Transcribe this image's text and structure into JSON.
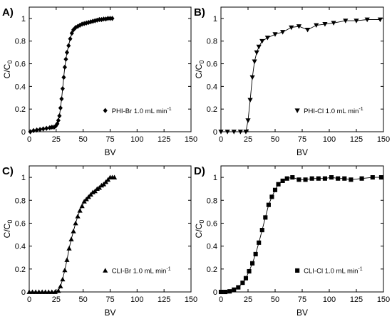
{
  "chart_data": [
    {
      "type": "scatter",
      "panel_label": "A)",
      "xlabel": "BV",
      "ylabel": "C/C",
      "ylabel_sub": "0",
      "xlim": [
        0,
        150
      ],
      "ylim": [
        0,
        1.1
      ],
      "xticks": [
        "0",
        "25",
        "50",
        "75",
        "100",
        "125",
        "150"
      ],
      "yticks": [
        "0",
        "0.2",
        "0.4",
        "0.6",
        "0.8",
        "1"
      ],
      "marker": "diamond",
      "legend": {
        "label": "PHI-Br 1.0 mL min",
        "superscript": "-1",
        "position": "right-middle"
      },
      "x": [
        1,
        4,
        7,
        10,
        13,
        16,
        19,
        21,
        23,
        24.5,
        26,
        27,
        28,
        29,
        30,
        31,
        32,
        33,
        34,
        35,
        36.5,
        38,
        39.5,
        41,
        43,
        45,
        47,
        49,
        51,
        53,
        55,
        57,
        59,
        61,
        63,
        65,
        67,
        69,
        71,
        73,
        75,
        77
      ],
      "y": [
        0,
        0.01,
        0.015,
        0.02,
        0.025,
        0.03,
        0.035,
        0.04,
        0.04,
        0.05,
        0.07,
        0.1,
        0.14,
        0.21,
        0.29,
        0.38,
        0.48,
        0.57,
        0.64,
        0.7,
        0.76,
        0.82,
        0.87,
        0.9,
        0.92,
        0.93,
        0.94,
        0.95,
        0.955,
        0.96,
        0.965,
        0.97,
        0.975,
        0.98,
        0.985,
        0.99,
        0.99,
        0.995,
        0.995,
        1.0,
        1.0,
        1.0
      ]
    },
    {
      "type": "scatter",
      "panel_label": "B)",
      "xlabel": "BV",
      "ylabel": "C/C",
      "ylabel_sub": "0",
      "xlim": [
        0,
        150
      ],
      "ylim": [
        0,
        1.1
      ],
      "xticks": [
        "0",
        "25",
        "50",
        "75",
        "100",
        "125",
        "150"
      ],
      "yticks": [
        "0",
        "0.2",
        "0.4",
        "0.6",
        "0.8",
        "1"
      ],
      "marker": "triangle-down",
      "legend": {
        "label": "PHI-Cl 1.0 mL min",
        "superscript": "-1",
        "position": "right-middle"
      },
      "x": [
        0,
        6,
        12,
        18,
        23,
        25,
        27,
        29,
        31,
        33,
        35,
        38,
        43,
        50,
        57,
        65,
        72,
        80,
        88,
        96,
        104,
        115,
        125,
        135,
        147
      ],
      "y": [
        0,
        0,
        0,
        0,
        0,
        0.1,
        0.28,
        0.48,
        0.62,
        0.7,
        0.75,
        0.8,
        0.83,
        0.86,
        0.88,
        0.92,
        0.93,
        0.9,
        0.94,
        0.95,
        0.96,
        0.98,
        0.98,
        0.99,
        0.99
      ]
    },
    {
      "type": "scatter",
      "panel_label": "C)",
      "xlabel": "BV",
      "ylabel": "C/C",
      "ylabel_sub": "0",
      "xlim": [
        0,
        150
      ],
      "ylim": [
        0,
        1.1
      ],
      "xticks": [
        "0",
        "25",
        "50",
        "75",
        "100",
        "125",
        "150"
      ],
      "yticks": [
        "0",
        "0.2",
        "0.4",
        "0.6",
        "0.8",
        "1"
      ],
      "marker": "triangle-up",
      "legend": {
        "label": "CLI-Br 1.0 mL min",
        "superscript": "-1",
        "position": "right-middle"
      },
      "x": [
        0,
        3,
        6,
        9,
        12,
        15,
        18,
        21,
        24,
        27,
        29,
        31,
        33,
        35,
        37,
        39,
        41,
        43,
        45,
        47,
        49,
        51,
        53,
        55,
        57,
        59,
        61,
        63,
        65,
        67,
        69,
        71,
        73,
        75,
        77,
        79
      ],
      "y": [
        0,
        0,
        0,
        0,
        0,
        0,
        0,
        0,
        0,
        0.01,
        0.05,
        0.11,
        0.19,
        0.28,
        0.38,
        0.46,
        0.53,
        0.6,
        0.66,
        0.71,
        0.75,
        0.79,
        0.81,
        0.83,
        0.85,
        0.87,
        0.88,
        0.9,
        0.91,
        0.93,
        0.94,
        0.96,
        0.98,
        1.0,
        1.0,
        1.0
      ]
    },
    {
      "type": "scatter",
      "panel_label": "D)",
      "xlabel": "BV",
      "ylabel": "C/C",
      "ylabel_sub": "0",
      "xlim": [
        0,
        150
      ],
      "ylim": [
        0,
        1.1
      ],
      "xticks": [
        "0",
        "25",
        "50",
        "75",
        "100",
        "125",
        "150"
      ],
      "yticks": [
        "0",
        "0.2",
        "0.4",
        "0.6",
        "0.8",
        "1"
      ],
      "marker": "square",
      "legend": {
        "label": "CLI-Cl 1.0 mL min",
        "superscript": "-1",
        "position": "right-middle"
      },
      "x": [
        0,
        4,
        8,
        12,
        16,
        20,
        23,
        26,
        29,
        32,
        35,
        38,
        41,
        44,
        47,
        50,
        53,
        57,
        61,
        66,
        72,
        78,
        84,
        90,
        96,
        102,
        108,
        114,
        120,
        130,
        140,
        148
      ],
      "y": [
        0,
        0,
        0.005,
        0.02,
        0.04,
        0.08,
        0.12,
        0.18,
        0.25,
        0.33,
        0.43,
        0.54,
        0.65,
        0.76,
        0.83,
        0.89,
        0.94,
        0.97,
        0.99,
        1.0,
        0.98,
        0.98,
        0.99,
        0.99,
        0.99,
        1.0,
        0.99,
        0.99,
        0.98,
        0.99,
        1.0,
        1.0
      ]
    }
  ]
}
